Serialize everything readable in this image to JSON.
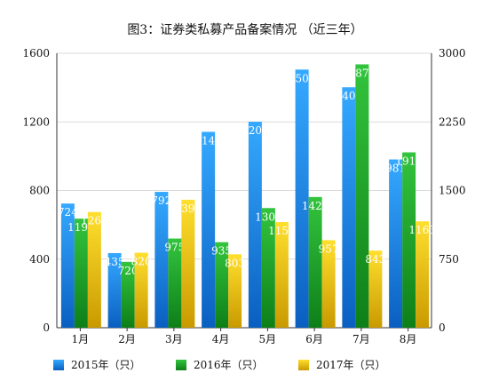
{
  "chart_data": {
    "type": "bar",
    "title": "图3：证券类私募产品备案情况 （近三年）",
    "categories": [
      "1月",
      "2月",
      "3月",
      "4月",
      "5月",
      "6月",
      "7月",
      "8月"
    ],
    "left_axis": {
      "min": 0,
      "max": 1600,
      "ticks": [
        "0",
        "400",
        "800",
        "1200",
        "1600"
      ]
    },
    "right_axis": {
      "min": 0,
      "max": 3000,
      "ticks": [
        "0",
        "750",
        "1500",
        "2250",
        "3000"
      ]
    },
    "series": [
      {
        "name": "2015年（只）",
        "axis": "left",
        "color": "#1f8de8",
        "values": [
          724,
          435,
          792,
          1142,
          1201,
          1505,
          1402,
          981
        ]
      },
      {
        "name": "2016年（只）",
        "axis": "right",
        "color": "#1fa82a",
        "values": [
          1192,
          720,
          975,
          935,
          1308,
          1429,
          2879,
          1917
        ]
      },
      {
        "name": "2017年（只）",
        "axis": "right",
        "color": "#f2c20a",
        "values": [
          1265,
          820,
          1399,
          803,
          1155,
          957,
          843,
          1163
        ]
      }
    ],
    "grid": true,
    "legend_position": "bottom"
  }
}
